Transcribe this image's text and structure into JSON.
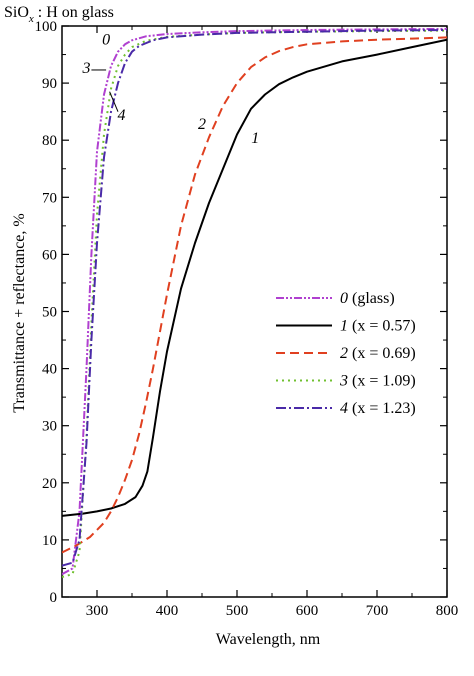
{
  "chart_data": {
    "type": "line",
    "title_parts": {
      "base": "SiO",
      "sub": "x",
      "rest": " : H on glass"
    },
    "xlabel": "Wavelength, nm",
    "ylabel": "Transmittance + reflectance, %",
    "xlim": [
      250,
      800
    ],
    "ylim": [
      0,
      100
    ],
    "xticks": [
      300,
      400,
      500,
      600,
      700,
      800
    ],
    "yticks": [
      0,
      10,
      20,
      30,
      40,
      50,
      60,
      70,
      80,
      90,
      100
    ],
    "grid": false,
    "legend_position": "center-right",
    "series": [
      {
        "name": "0 (glass)",
        "label_italic": "0",
        "label_rest": " (glass)",
        "color": "#b040d0",
        "dash": "8,2,2,2,2,2",
        "x": [
          250,
          265,
          275,
          285,
          292,
          300,
          310,
          320,
          330,
          340,
          350,
          370,
          400,
          450,
          500,
          600,
          700,
          800
        ],
        "y": [
          4,
          5,
          15,
          40,
          60,
          78,
          88,
          93,
          95.5,
          96.8,
          97.5,
          98.2,
          98.6,
          98.9,
          99.1,
          99.3,
          99.4,
          99.5
        ]
      },
      {
        "name": "1 (x = 0.57)",
        "label_italic": "1",
        "label_rest": " (x = 0.57)",
        "color": "#000000",
        "dash": "",
        "x": [
          250,
          280,
          300,
          320,
          340,
          355,
          365,
          372,
          380,
          390,
          400,
          420,
          440,
          460,
          480,
          500,
          520,
          540,
          560,
          580,
          600,
          650,
          700,
          750,
          800
        ],
        "y": [
          14.2,
          14.6,
          15,
          15.5,
          16.3,
          17.5,
          19.5,
          22,
          28,
          36,
          43,
          54,
          62,
          69,
          75,
          81,
          85.5,
          88,
          89.8,
          91,
          92,
          93.8,
          95,
          96.3,
          97.6
        ]
      },
      {
        "name": "2 (x = 0.69)",
        "label_italic": "2",
        "label_rest": " (x = 0.69)",
        "color": "#e04020",
        "dash": "9,5",
        "x": [
          250,
          270,
          290,
          310,
          320,
          330,
          340,
          350,
          360,
          370,
          380,
          400,
          420,
          440,
          460,
          480,
          500,
          520,
          540,
          560,
          580,
          600,
          650,
          700,
          750,
          800
        ],
        "y": [
          7.8,
          9,
          10.5,
          13,
          15,
          17.5,
          20.5,
          24,
          28.5,
          34,
          40,
          53,
          65,
          74,
          80.5,
          86,
          90,
          92.8,
          94.5,
          95.6,
          96.3,
          96.8,
          97.3,
          97.6,
          97.8,
          98
        ]
      },
      {
        "name": "3 (x = 1.09)",
        "label_italic": "3",
        "label_rest": " (x = 1.09)",
        "color": "#70c030",
        "dash": "2,4",
        "x": [
          250,
          265,
          275,
          285,
          292,
          300,
          310,
          320,
          330,
          340,
          350,
          370,
          400,
          450,
          500,
          600,
          700,
          800
        ],
        "y": [
          3.5,
          4,
          8,
          28,
          48,
          67,
          81,
          89,
          93,
          95,
          96.3,
          97.4,
          98.1,
          98.5,
          98.8,
          99,
          99.1,
          99.2
        ]
      },
      {
        "name": "4 (x = 1.23)",
        "label_italic": "4",
        "label_rest": " (x = 1.23)",
        "color": "#4a2aa8",
        "dash": "10,3,2,3",
        "x": [
          250,
          265,
          275,
          285,
          292,
          300,
          310,
          320,
          330,
          340,
          350,
          360,
          380,
          400,
          450,
          500,
          600,
          700,
          800
        ],
        "y": [
          5.5,
          6,
          10,
          27,
          45,
          62,
          77,
          85,
          90,
          93.5,
          95.5,
          96.5,
          97.5,
          98,
          98.5,
          98.8,
          99,
          99.2,
          99.3
        ]
      }
    ],
    "curve_labels": [
      {
        "text": "0",
        "x": 313,
        "y": 96.8
      },
      {
        "text": "3",
        "x": 285,
        "y": 91.8
      },
      {
        "text": "4",
        "x": 335,
        "y": 83.5
      },
      {
        "text": "2",
        "x": 450,
        "y": 82
      },
      {
        "text": "1",
        "x": 526,
        "y": 79.5
      }
    ]
  }
}
